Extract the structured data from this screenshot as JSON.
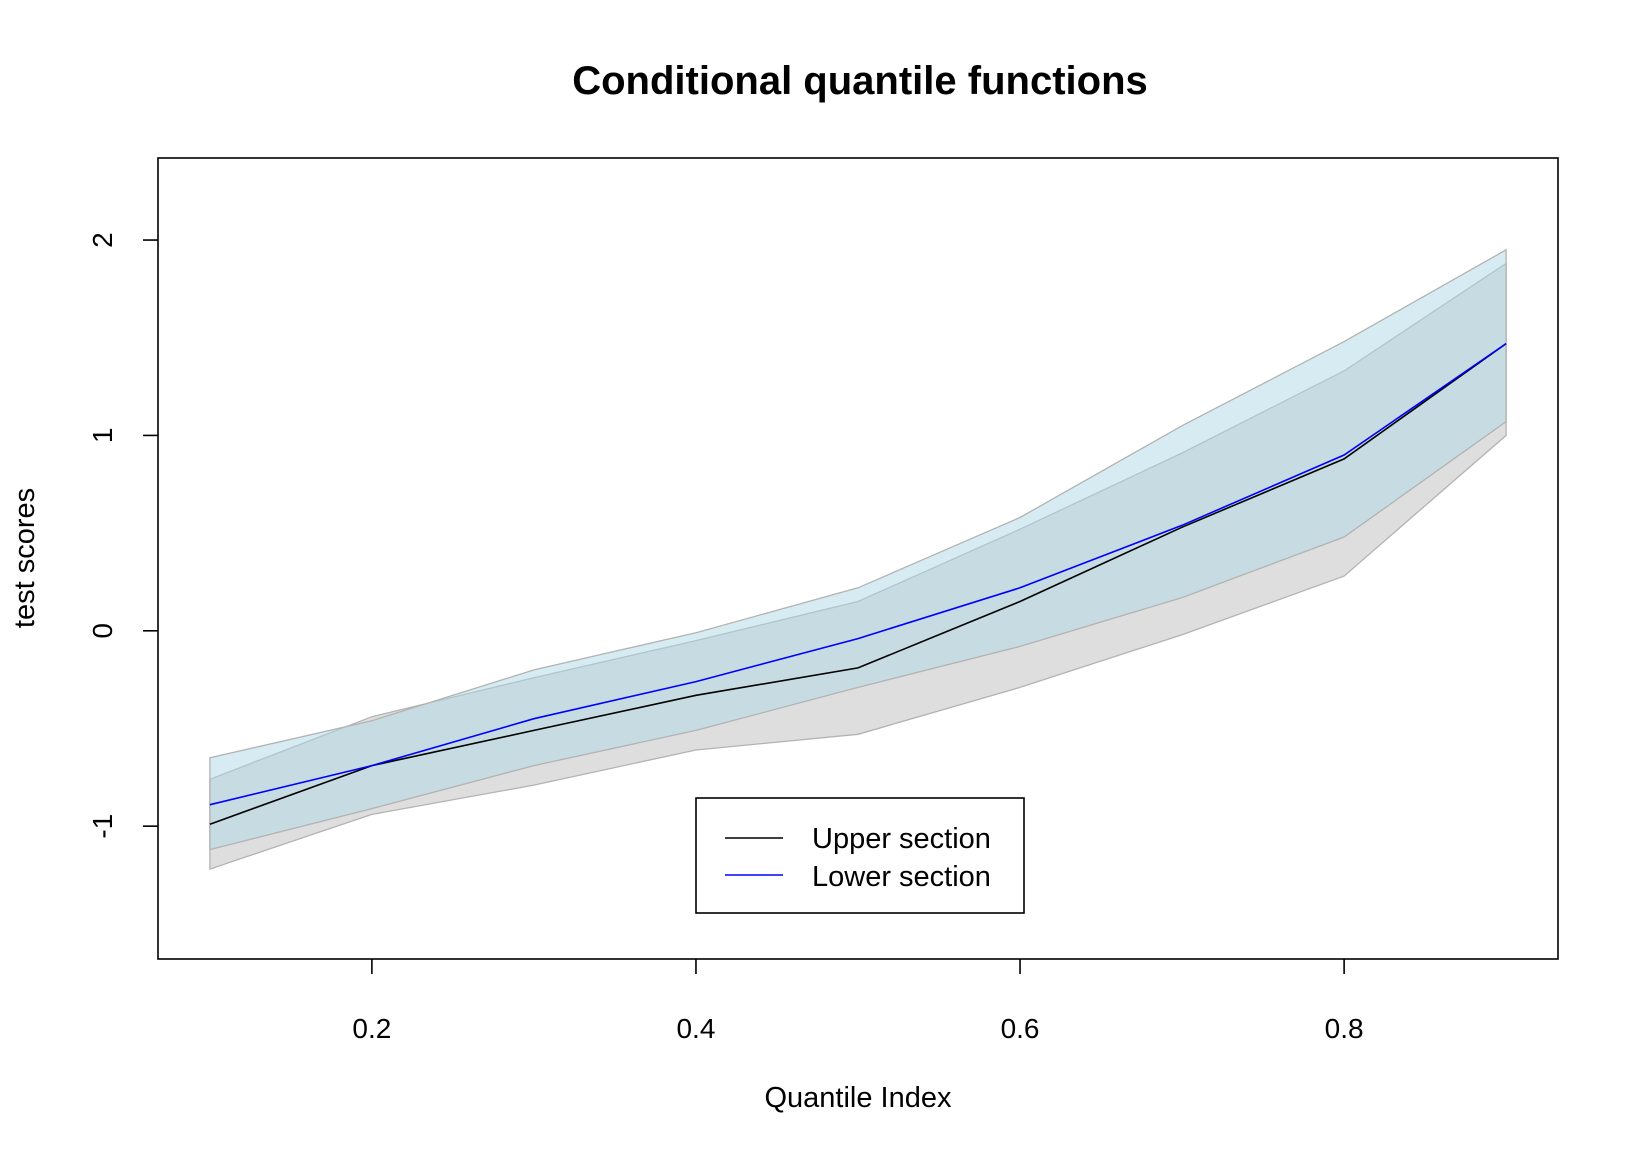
{
  "chart_data": {
    "type": "line",
    "title": "Conditional quantile functions",
    "xlabel": "Quantile Index",
    "ylabel": "test scores",
    "xlim": [
      0.068,
      0.932
    ],
    "ylim": [
      -1.68,
      2.42
    ],
    "x_ticks": [
      0.2,
      0.4,
      0.6,
      0.8
    ],
    "x_tick_labels": [
      "0.2",
      "0.4",
      "0.6",
      "0.8"
    ],
    "y_ticks": [
      -1,
      0,
      1,
      2
    ],
    "y_tick_labels": [
      "-1",
      "0",
      "1",
      "2"
    ],
    "grid": false,
    "legend_position": "bottom-center",
    "x": [
      0.1,
      0.2,
      0.3,
      0.4,
      0.5,
      0.6,
      0.7,
      0.8,
      0.9
    ],
    "series": [
      {
        "name": "Upper section",
        "color": "#000000",
        "values": [
          -0.99,
          -0.69,
          -0.51,
          -0.33,
          -0.19,
          0.15,
          0.53,
          0.88,
          1.47
        ],
        "band_upper": [
          -0.76,
          -0.44,
          -0.24,
          -0.05,
          0.15,
          0.52,
          0.91,
          1.33,
          1.88
        ],
        "band_lower": [
          -1.22,
          -0.94,
          -0.79,
          -0.61,
          -0.53,
          -0.29,
          -0.02,
          0.28,
          1.0
        ],
        "band_color": "#bebebe"
      },
      {
        "name": "Lower section",
        "color": "#0000ff",
        "values": [
          -0.89,
          -0.69,
          -0.45,
          -0.26,
          -0.04,
          0.22,
          0.54,
          0.9,
          1.47
        ],
        "band_upper": [
          -0.65,
          -0.46,
          -0.2,
          -0.01,
          0.22,
          0.58,
          1.05,
          1.48,
          1.95
        ],
        "band_lower": [
          -1.12,
          -0.91,
          -0.69,
          -0.51,
          -0.29,
          -0.08,
          0.17,
          0.48,
          1.07
        ],
        "band_color": "#add8e6"
      }
    ]
  }
}
